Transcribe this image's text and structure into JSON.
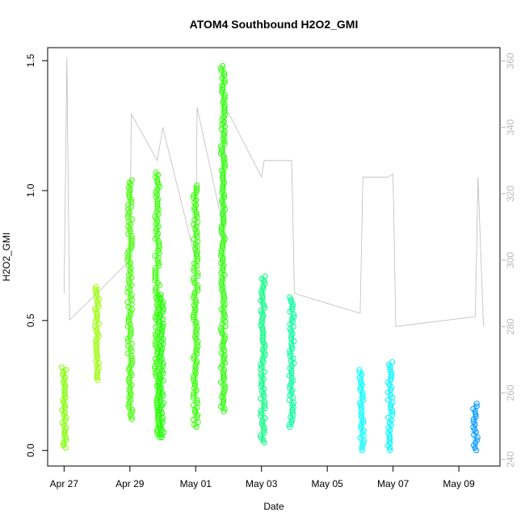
{
  "chart_data": {
    "type": "scatter",
    "title": "ATOM4 Southbound H2O2_GMI",
    "xlabel": "Date",
    "ylabel": "H2O2_GMI",
    "xlim": [
      "2018-04-26T12:00",
      "2018-05-10T06:00"
    ],
    "ylim": [
      -0.06,
      1.55
    ],
    "x_ticks": [
      {
        "date": "2018-04-27T00:00",
        "label": "Apr 27"
      },
      {
        "date": "2018-04-29T00:00",
        "label": "Apr 29"
      },
      {
        "date": "2018-05-01T00:00",
        "label": "May 01"
      },
      {
        "date": "2018-05-03T00:00",
        "label": "May 03"
      },
      {
        "date": "2018-05-05T00:00",
        "label": "May 05"
      },
      {
        "date": "2018-05-07T00:00",
        "label": "May 07"
      },
      {
        "date": "2018-05-09T00:00",
        "label": "May 09"
      }
    ],
    "y_ticks": [
      "0.0",
      "0.5",
      "1.0",
      "1.5"
    ],
    "y2_ticks": [
      "240",
      "260",
      "280",
      "300",
      "320",
      "340",
      "360"
    ],
    "y2lim": [
      238,
      364
    ],
    "grid": false,
    "colors": {
      "trace": "#bdbdbd",
      "axis": "#000000",
      "right_axis": "#b9b9b9"
    },
    "series": [
      {
        "color": "#80ff00",
        "points": [
          [
            "2018-04-27T00:00",
            0.32,
            0.01
          ]
        ]
      },
      {
        "color": "#99ff00",
        "points": [
          [
            "2018-04-28T00:00",
            0.63,
            0.27
          ]
        ]
      },
      {
        "color": "#40ff00",
        "points": [
          [
            "2018-04-29T00:00",
            1.04,
            0.12
          ]
        ]
      },
      {
        "color": "#33ff00",
        "points": [
          [
            "2018-04-29T20:00",
            1.07,
            0.05
          ]
        ]
      },
      {
        "color": "#19ff00",
        "points": [
          [
            "2018-04-29T23:00",
            0.6,
            0.05
          ]
        ]
      },
      {
        "color": "#33ff00",
        "points": [
          [
            "2018-05-01T00:00",
            1.02,
            0.09
          ]
        ]
      },
      {
        "color": "#26ff00",
        "points": [
          [
            "2018-05-01T20:00",
            1.48,
            0.15
          ]
        ]
      },
      {
        "color": "#00ff80",
        "points": [
          [
            "2018-05-03T01:00",
            0.67,
            0.03
          ]
        ]
      },
      {
        "color": "#00ff99",
        "points": [
          [
            "2018-05-03T22:00",
            0.59,
            0.09
          ]
        ]
      },
      {
        "color": "#00ffff",
        "points": [
          [
            "2018-05-06T01:00",
            0.31,
            0.0
          ]
        ]
      },
      {
        "color": "#00f5ff",
        "points": [
          [
            "2018-05-06T22:00",
            0.34,
            0.0
          ]
        ]
      },
      {
        "color": "#0099ff",
        "points": [
          [
            "2018-05-09T12:00",
            0.18,
            0.0
          ]
        ]
      }
    ],
    "trace_points": [
      [
        "2018-04-27T00:00",
        290
      ],
      [
        "2018-04-27T02:00",
        361
      ],
      [
        "2018-04-27T04:00",
        282
      ],
      [
        "2018-04-28T00:00",
        290
      ],
      [
        "2018-04-29T00:00",
        300
      ],
      [
        "2018-04-29T01:00",
        344
      ],
      [
        "2018-04-29T20:00",
        330
      ],
      [
        "2018-04-30T00:00",
        340
      ],
      [
        "2018-05-01T00:00",
        300
      ],
      [
        "2018-05-01T01:00",
        346
      ],
      [
        "2018-05-01T20:00",
        310
      ],
      [
        "2018-05-01T22:00",
        346
      ],
      [
        "2018-05-03T00:00",
        325
      ],
      [
        "2018-05-03T02:00",
        330
      ],
      [
        "2018-05-03T22:00",
        330
      ],
      [
        "2018-05-04T00:00",
        290
      ],
      [
        "2018-05-06T00:00",
        284
      ],
      [
        "2018-05-06T02:00",
        325
      ],
      [
        "2018-05-06T20:00",
        325
      ],
      [
        "2018-05-07T00:00",
        326
      ],
      [
        "2018-05-07T02:00",
        280
      ],
      [
        "2018-05-09T12:00",
        283
      ],
      [
        "2018-05-09T14:00",
        325
      ],
      [
        "2018-05-09T18:00",
        280
      ]
    ]
  }
}
